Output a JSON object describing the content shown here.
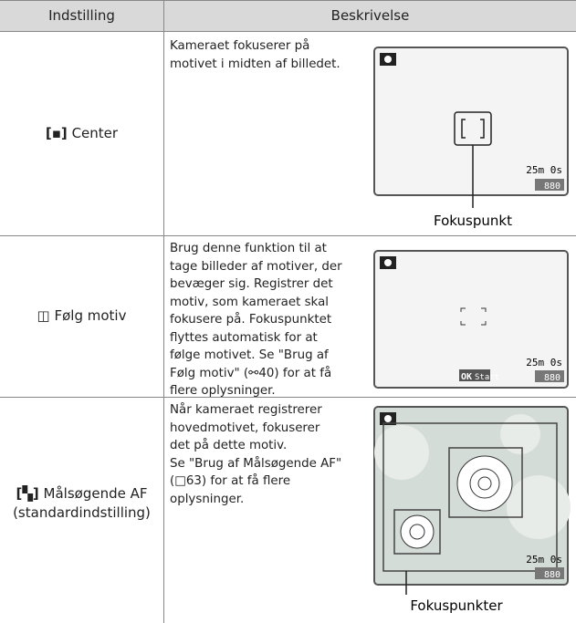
{
  "header": {
    "setting": "Indstilling",
    "description": "Beskrivelse"
  },
  "rows": [
    {
      "icon": "[▪]",
      "setting": [
        "Center"
      ],
      "description": [
        "Kameraet fokuserer på",
        "motivet i midten af billedet."
      ],
      "screen": {
        "time": "25m 0s",
        "count": "880"
      },
      "caption": "Fokuspunkt"
    },
    {
      "icon": "◫",
      "setting": [
        "Følg motiv"
      ],
      "description": [
        "Brug denne funktion til at",
        "tage billeder af motiver, der",
        "bevæger sig. Registrer det",
        "motiv, som kameraet skal",
        "fokusere på. Fokuspunktet",
        "flyttes automatisk for at",
        "følge motivet. Se \"Brug af",
        "Følg motiv\" (⚯40) for at få",
        "flere oplysninger."
      ],
      "screen": {
        "time": "25m 0s",
        "count": "880",
        "button": "OK",
        "button_label": "Start"
      }
    },
    {
      "icon": "[▚]",
      "setting": [
        "Målsøgende AF",
        "(standardindstilling)"
      ],
      "description": [
        "Når kameraet registrerer",
        "hovedmotivet, fokuserer",
        "det på dette motiv.",
        "Se \"Brug af Målsøgende AF\"",
        "(□63) for at få flere",
        "oplysninger."
      ],
      "screen": {
        "time": "25m 0s",
        "count": "880"
      },
      "caption": "Fokuspunkter"
    }
  ]
}
